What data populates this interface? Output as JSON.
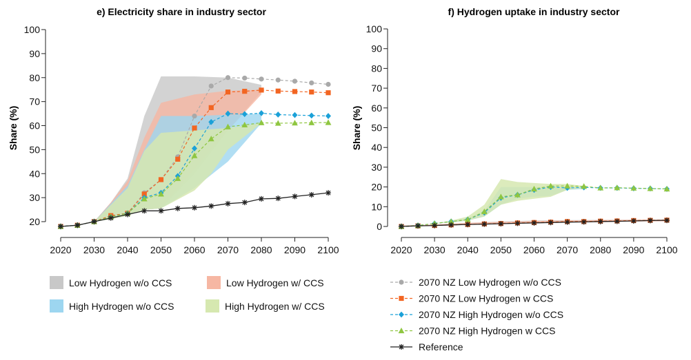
{
  "colors": {
    "low_wo": "#a9a9a9",
    "low_w": "#f26522",
    "high_wo": "#1ba1d8",
    "high_w": "#8fc641",
    "ref": "#222222"
  },
  "legends": {
    "bands": [
      {
        "label": "Low Hydrogen w/o CCS",
        "color": "#c8c8c8"
      },
      {
        "label": "Low Hydrogen w/ CCS",
        "color": "#f6b7a3"
      },
      {
        "label": "High Hydrogen w/o CCS",
        "color": "#9dd6f0"
      },
      {
        "label": "High Hydrogen w/ CCS",
        "color": "#d6e8b0"
      }
    ],
    "lines": [
      {
        "label": "2070 NZ Low Hydrogen w/o CCS",
        "color": "#a9a9a9",
        "marker": "circle",
        "dashed": true
      },
      {
        "label": "2070 NZ Low Hydrogen w CCS",
        "color": "#f26522",
        "marker": "square",
        "dashed": true
      },
      {
        "label": "2070 NZ High Hydrogen w/o CCS",
        "color": "#1ba1d8",
        "marker": "diamond",
        "dashed": true
      },
      {
        "label": "2070 NZ High Hydrogen w CCS",
        "color": "#8fc641",
        "marker": "triangle",
        "dashed": true
      },
      {
        "label": "Reference",
        "color": "#222222",
        "marker": "star",
        "dashed": false
      }
    ]
  },
  "chart_data": [
    {
      "type": "line",
      "title": "e) Electricity share in industry sector",
      "ylabel": "Share (%)",
      "xlabel": "",
      "x": [
        2020,
        2025,
        2030,
        2035,
        2040,
        2045,
        2050,
        2055,
        2060,
        2065,
        2070,
        2075,
        2080,
        2085,
        2090,
        2095,
        2100
      ],
      "xticks": [
        2020,
        2030,
        2040,
        2050,
        2060,
        2070,
        2080,
        2090,
        2100
      ],
      "yticks": [
        20,
        30,
        40,
        50,
        60,
        70,
        80,
        90,
        100
      ],
      "xlim": [
        2020,
        2100
      ],
      "ylim": [
        18,
        100
      ],
      "bands": [
        {
          "name": "Low Hydrogen w/o CCS",
          "color": "#c8c8c8",
          "opacity": 0.8,
          "x": [
            2030,
            2035,
            2040,
            2045,
            2050,
            2060,
            2070,
            2080
          ],
          "upper": [
            20,
            28,
            38,
            64,
            80.5,
            80.5,
            80,
            77
          ],
          "lower": [
            20,
            21,
            22.5,
            25,
            25.5,
            40,
            58,
            74
          ]
        },
        {
          "name": "Low Hydrogen w/ CCS",
          "color": "#f6b7a3",
          "opacity": 0.8,
          "x": [
            2030,
            2035,
            2040,
            2045,
            2050,
            2060,
            2070,
            2080
          ],
          "upper": [
            20,
            28,
            37,
            55,
            69.5,
            73,
            74.5,
            75
          ],
          "lower": [
            20,
            21,
            22.5,
            25,
            25.5,
            42,
            58,
            73
          ]
        },
        {
          "name": "High Hydrogen w/o CCS",
          "color": "#9dd6f0",
          "opacity": 0.8,
          "x": [
            2030,
            2035,
            2040,
            2045,
            2050,
            2060,
            2070,
            2080
          ],
          "upper": [
            20,
            27.5,
            35,
            50,
            64,
            64,
            64.5,
            65
          ],
          "lower": [
            20,
            21,
            22.5,
            25,
            25.5,
            34,
            45,
            61
          ]
        },
        {
          "name": "High Hydrogen w/ CCS",
          "color": "#d6e8b0",
          "opacity": 0.85,
          "x": [
            2030,
            2035,
            2040,
            2045,
            2050,
            2060,
            2065,
            2070,
            2080
          ],
          "upper": [
            20,
            27,
            34,
            49.5,
            57,
            58,
            58.5,
            59,
            61
          ],
          "lower": [
            20,
            21,
            22.5,
            25,
            25.5,
            33,
            40,
            50,
            61
          ]
        }
      ],
      "series": [
        {
          "name": "2070 NZ Low Hydrogen w/o CCS",
          "color": "#a9a9a9",
          "marker": "circle",
          "dashed": true,
          "values": [
            18,
            18.5,
            20,
            22.5,
            23.5,
            32,
            37.5,
            47,
            64,
            76.5,
            80,
            79.8,
            79.4,
            79,
            78.5,
            77.8,
            77.2
          ]
        },
        {
          "name": "2070 NZ Low Hydrogen w CCS",
          "color": "#f26522",
          "marker": "square",
          "dashed": true,
          "values": [
            18,
            18.5,
            20,
            22.5,
            23.5,
            31.5,
            37.5,
            46,
            59,
            67.5,
            74,
            74.3,
            74.8,
            74.4,
            74.2,
            74,
            73.7
          ]
        },
        {
          "name": "2070 NZ High Hydrogen w/o CCS",
          "color": "#1ba1d8",
          "marker": "diamond",
          "dashed": true,
          "values": [
            18,
            18.5,
            20,
            22,
            23.5,
            30,
            32,
            39,
            50.5,
            61.5,
            65,
            64.8,
            65.2,
            64.6,
            64.4,
            64.2,
            64
          ]
        },
        {
          "name": "2070 NZ High Hydrogen w CCS",
          "color": "#8fc641",
          "marker": "triangle",
          "dashed": true,
          "values": [
            18,
            18.5,
            20,
            22,
            23.5,
            29.5,
            31.5,
            38,
            47.5,
            54.5,
            59.5,
            60.3,
            61.2,
            61,
            61.1,
            61.2,
            61.3
          ]
        },
        {
          "name": "Reference",
          "color": "#222222",
          "marker": "star",
          "dashed": false,
          "values": [
            18,
            18.5,
            20,
            21.5,
            23,
            24.5,
            24.5,
            25.5,
            25.8,
            26.5,
            27.5,
            28,
            29.5,
            29.7,
            30.5,
            31.2,
            32
          ]
        }
      ]
    },
    {
      "type": "line",
      "title": "f) Hydrogen uptake in industry sector",
      "ylabel": "Share (%)",
      "xlabel": "",
      "x": [
        2020,
        2025,
        2030,
        2035,
        2040,
        2045,
        2050,
        2055,
        2060,
        2065,
        2070,
        2075,
        2080,
        2085,
        2090,
        2095,
        2100
      ],
      "xticks": [
        2020,
        2030,
        2040,
        2050,
        2060,
        2070,
        2080,
        2090,
        2100
      ],
      "yticks": [
        0,
        10,
        20,
        30,
        40,
        50,
        60,
        70,
        80,
        90,
        100
      ],
      "xlim": [
        2020,
        2100
      ],
      "ylim": [
        -1,
        102
      ],
      "bands": [
        {
          "name": "Low Hydrogen w/o CCS",
          "color": "#c8c8c8",
          "opacity": 0.8,
          "x": [
            2020,
            2030,
            2040,
            2050,
            2060,
            2070,
            2080,
            2090,
            2100
          ],
          "upper": [
            0.5,
            1,
            1.8,
            2.5,
            3,
            3.2,
            3.3,
            3.5,
            3.6
          ],
          "lower": [
            0,
            0.3,
            0.8,
            1.2,
            1.6,
            2,
            2.2,
            2.5,
            2.6
          ]
        },
        {
          "name": "Low Hydrogen w/ CCS",
          "color": "#f6b7a3",
          "opacity": 0.8,
          "x": [
            2020,
            2030,
            2040,
            2050,
            2060,
            2070,
            2080,
            2090,
            2100
          ],
          "upper": [
            0.5,
            1,
            1.8,
            2.3,
            2.8,
            3,
            3.2,
            3.4,
            3.5
          ],
          "lower": [
            0,
            0.3,
            0.8,
            1.2,
            1.6,
            2,
            2.2,
            2.5,
            2.6
          ]
        },
        {
          "name": "High Hydrogen w/o CCS",
          "color": "#9dd6f0",
          "opacity": 0.8,
          "x": [
            2030,
            2035,
            2040,
            2045,
            2050,
            2055,
            2060,
            2065,
            2070,
            2075
          ],
          "upper": [
            1.5,
            2.5,
            4,
            8,
            20,
            20,
            20,
            20,
            20,
            19.5
          ],
          "lower": [
            1.5,
            2,
            3,
            5,
            11,
            14,
            15,
            15.5,
            18.5,
            19
          ]
        },
        {
          "name": "High Hydrogen w/ CCS",
          "color": "#d6e8b0",
          "opacity": 0.85,
          "x": [
            2030,
            2035,
            2040,
            2045,
            2050,
            2055,
            2060,
            2065,
            2070,
            2075
          ],
          "upper": [
            1.5,
            3,
            5,
            11,
            24,
            22.5,
            22,
            21.5,
            21.5,
            20.5
          ],
          "lower": [
            1.5,
            2,
            3,
            5,
            11,
            13,
            14,
            15,
            18.5,
            19.5
          ]
        }
      ],
      "series": [
        {
          "name": "2070 NZ Low Hydrogen w/o CCS",
          "color": "#a9a9a9",
          "marker": "circle",
          "dashed": true,
          "values": [
            0,
            0.3,
            0.5,
            0.8,
            1,
            1.3,
            1.5,
            1.8,
            2,
            2.2,
            2.5,
            2.5,
            2.7,
            2.8,
            3,
            3.1,
            3.2
          ]
        },
        {
          "name": "2070 NZ Low Hydrogen w CCS",
          "color": "#f26522",
          "marker": "square",
          "dashed": true,
          "values": [
            0,
            0.3,
            0.5,
            0.8,
            1,
            1.3,
            1.5,
            1.8,
            2,
            2.2,
            2.5,
            2.5,
            2.7,
            2.8,
            3,
            3.1,
            3.2
          ]
        },
        {
          "name": "2070 NZ High Hydrogen w/o CCS",
          "color": "#1ba1d8",
          "marker": "diamond",
          "dashed": true,
          "values": [
            0,
            0.5,
            1.5,
            2.5,
            3.5,
            7,
            14.5,
            16,
            18.5,
            20,
            19.5,
            19.8,
            19.5,
            19.5,
            19.3,
            19.2,
            19
          ]
        },
        {
          "name": "2070 NZ High Hydrogen w CCS",
          "color": "#8fc641",
          "marker": "triangle",
          "dashed": true,
          "values": [
            0,
            0.5,
            1.5,
            2.5,
            3.5,
            7.5,
            15,
            16,
            19,
            20.5,
            20.5,
            20.3,
            19.5,
            19.6,
            19.4,
            19.2,
            19
          ]
        },
        {
          "name": "Reference",
          "color": "#222222",
          "marker": "star",
          "dashed": false,
          "values": [
            0,
            0.3,
            0.5,
            0.8,
            1,
            1.2,
            1.4,
            1.6,
            1.8,
            2,
            2.2,
            2.3,
            2.5,
            2.6,
            2.8,
            3,
            3.1
          ]
        }
      ]
    }
  ]
}
